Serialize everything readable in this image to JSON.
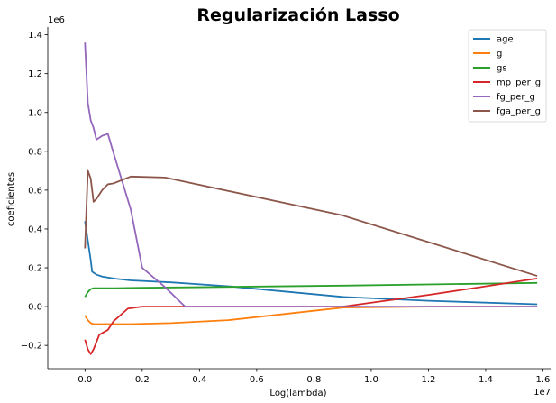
{
  "chart_data": {
    "type": "line",
    "title": "Regularización Lasso",
    "xlabel": "Log(lambda)",
    "ylabel": "coeficientes",
    "x_offset_label": "1e7",
    "y_offset_label": "1e6",
    "xlim": [
      -0.13,
      1.63
    ],
    "ylim": [
      -0.32,
      1.44
    ],
    "x_ticks": [
      0.0,
      0.2,
      0.4,
      0.6,
      0.8,
      1.0,
      1.2,
      1.4,
      1.6
    ],
    "x_tick_labels": [
      "0.0",
      "0.2",
      "0.4",
      "0.6",
      "0.8",
      "1.0",
      "1.2",
      "1.4",
      "1.6"
    ],
    "y_ticks": [
      -0.2,
      0.0,
      0.2,
      0.4,
      0.6,
      0.8,
      1.0,
      1.2,
      1.4
    ],
    "y_tick_labels": [
      "−0.2",
      "0.0",
      "0.2",
      "0.4",
      "0.6",
      "0.8",
      "1.0",
      "1.2",
      "1.4"
    ],
    "legend_position": "top-right",
    "series": [
      {
        "name": "age",
        "color": "#1f77b4",
        "x": [
          0.0,
          0.01,
          0.02,
          0.025,
          0.04,
          0.06,
          0.1,
          0.16,
          0.3,
          0.5,
          0.9,
          1.2,
          1.58
        ],
        "y": [
          0.44,
          0.34,
          0.24,
          0.18,
          0.165,
          0.155,
          0.145,
          0.135,
          0.125,
          0.105,
          0.05,
          0.03,
          0.012
        ]
      },
      {
        "name": "g",
        "color": "#ff7f0e",
        "x": [
          0.0,
          0.01,
          0.02,
          0.03,
          0.05,
          0.08,
          0.16,
          0.3,
          0.5,
          0.9,
          1.2,
          1.58
        ],
        "y": [
          -0.045,
          -0.07,
          -0.085,
          -0.09,
          -0.09,
          -0.09,
          -0.09,
          -0.085,
          -0.07,
          -0.005,
          0.0,
          0.0
        ]
      },
      {
        "name": "gs",
        "color": "#2ca02c",
        "x": [
          0.0,
          0.01,
          0.02,
          0.03,
          0.06,
          0.1,
          0.2,
          0.4,
          0.9,
          1.58
        ],
        "y": [
          0.05,
          0.075,
          0.09,
          0.095,
          0.095,
          0.095,
          0.097,
          0.1,
          0.108,
          0.122
        ]
      },
      {
        "name": "mp_per_g",
        "color": "#d62728",
        "x": [
          0.0,
          0.01,
          0.02,
          0.03,
          0.05,
          0.08,
          0.1,
          0.15,
          0.2,
          0.3,
          0.5,
          0.8,
          0.9,
          1.2,
          1.58
        ],
        "y": [
          -0.17,
          -0.22,
          -0.245,
          -0.22,
          -0.145,
          -0.12,
          -0.075,
          -0.01,
          0.0,
          0.0,
          0.0,
          0.0,
          0.0,
          0.06,
          0.145
        ]
      },
      {
        "name": "fg_per_g",
        "color": "#9467bd",
        "x": [
          0.0,
          0.01,
          0.02,
          0.03,
          0.04,
          0.06,
          0.08,
          0.1,
          0.16,
          0.2,
          0.28,
          0.35,
          0.5,
          1.58
        ],
        "y": [
          1.36,
          1.05,
          0.96,
          0.92,
          0.86,
          0.88,
          0.89,
          0.79,
          0.5,
          0.2,
          0.1,
          0.0,
          0.0,
          0.0
        ]
      },
      {
        "name": "fga_per_g",
        "color": "#8c564b",
        "x": [
          0.0,
          0.01,
          0.02,
          0.03,
          0.04,
          0.06,
          0.08,
          0.1,
          0.16,
          0.28,
          0.9,
          1.58
        ],
        "y": [
          0.3,
          0.7,
          0.66,
          0.54,
          0.555,
          0.6,
          0.63,
          0.635,
          0.67,
          0.665,
          0.47,
          0.158
        ]
      }
    ]
  }
}
